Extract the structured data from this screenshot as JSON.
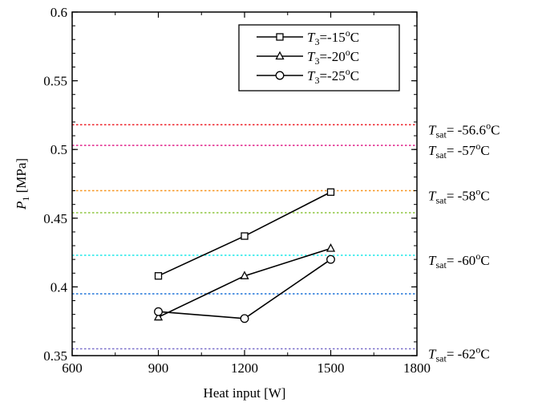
{
  "chart_data": {
    "type": "line",
    "xlabel": "Heat input [W]",
    "ylabel": {
      "main": "P",
      "sub": "1",
      "unit": " [MPa]"
    },
    "xlim": [
      600,
      1800
    ],
    "ylim": [
      0.35,
      0.6
    ],
    "x_ticks": [
      600,
      900,
      1200,
      1500,
      1800
    ],
    "x_tick_labels": [
      "600",
      "900",
      "1200",
      "1500",
      "1800"
    ],
    "y_ticks": [
      0.35,
      0.4,
      0.45,
      0.5,
      0.55,
      0.6
    ],
    "y_tick_labels": [
      "0.35",
      "0.4",
      "0.45",
      "0.5",
      "0.55",
      "0.6"
    ],
    "grid": false,
    "legend_position": "top-right",
    "series": [
      {
        "name": "T3=-15oC",
        "label": {
          "main": "T",
          "sub": "3",
          "rest": "=-15",
          "sup": "o",
          "end": "C"
        },
        "marker": "square",
        "x": [
          900,
          1200,
          1500
        ],
        "y": [
          0.408,
          0.437,
          0.469
        ]
      },
      {
        "name": "T3=-20oC",
        "label": {
          "main": "T",
          "sub": "3",
          "rest": "=-20",
          "sup": "o",
          "end": "C"
        },
        "marker": "triangle",
        "x": [
          900,
          1200,
          1500
        ],
        "y": [
          0.378,
          0.408,
          0.428
        ]
      },
      {
        "name": "T3=-25oC",
        "label": {
          "main": "T",
          "sub": "3",
          "rest": "=-25",
          "sup": "o",
          "end": "C"
        },
        "marker": "circle",
        "x": [
          900,
          1200,
          1500
        ],
        "y": [
          0.382,
          0.377,
          0.42
        ]
      }
    ],
    "reference_lines": [
      {
        "y": 0.518,
        "color": "#ee1c25",
        "label": {
          "main": "T",
          "sub": "sat",
          "rest": "= -56.6",
          "sup": "o",
          "end": "C"
        }
      },
      {
        "y": 0.503,
        "color": "#e0218a",
        "label": {
          "main": "T",
          "sub": "sat",
          "rest": "= -57",
          "sup": "o",
          "end": "C"
        }
      },
      {
        "y": 0.47,
        "color": "#f7941d",
        "label": {
          "main": "T",
          "sub": "sat",
          "rest": "= -58",
          "sup": "o",
          "end": "C"
        }
      },
      {
        "y": 0.454,
        "color": "#8dc63f",
        "label": null
      },
      {
        "y": 0.423,
        "color": "#1de9e9",
        "label": {
          "main": "T",
          "sub": "sat",
          "rest": "= -60",
          "sup": "o",
          "end": "C"
        }
      },
      {
        "y": 0.395,
        "color": "#1e73d8",
        "label": null
      },
      {
        "y": 0.355,
        "color": "#7a6fc9",
        "label": {
          "main": "T",
          "sub": "sat",
          "rest": "= -62",
          "sup": "o",
          "end": "C"
        }
      }
    ]
  }
}
